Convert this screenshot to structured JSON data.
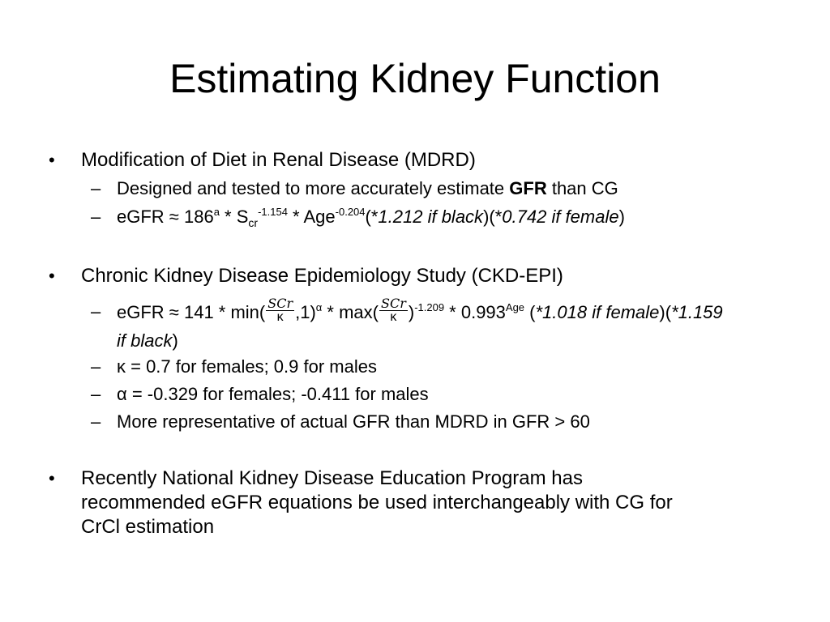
{
  "title": "Estimating Kidney Function",
  "bullets": {
    "mdrd": {
      "marker": "•",
      "heading": "Modification of Diet in Renal Disease (MDRD)",
      "sub1": {
        "dash": "–",
        "prefix": "Designed and tested to more accurately estimate ",
        "bold": "GFR",
        "suffix": " than CG"
      },
      "sub2": {
        "dash": "–",
        "p1": "eGFR ≈ 186",
        "sup_a": "a",
        "p2": " * S",
        "sub_cr": "cr",
        "sup_1": "-1.154",
        "p3": " * Age",
        "sup_2": "-0.204",
        "p4": "(*",
        "it1": "1.212 if black",
        "p5": ")(*",
        "it2": "0.742 if female",
        "p6": ")"
      }
    },
    "ckdepi": {
      "marker": "•",
      "heading": "Chronic Kidney Disease Epidemiology Study (CKD-EPI)",
      "sub1": {
        "dash": "–",
        "p1": "eGFR ≈ 141 * min(",
        "frac_num": "SCr",
        "frac_den": "κ",
        "p2": ",1)",
        "sup_alpha": "α",
        "p3": " * max(",
        "p4": ")",
        "sup_exp": "-1.209",
        "p5": " * 0.993",
        "sup_age": "Age",
        "p6": " (",
        "it1": "*1.018 if female",
        "p7": ")(",
        "it2": "*1.159 if black",
        "p8": ")"
      },
      "sub2": {
        "dash": "–",
        "text": "κ = 0.7 for females; 0.9 for males"
      },
      "sub3": {
        "dash": "–",
        "text": "α = -0.329 for females; -0.411 for males"
      },
      "sub4": {
        "dash": "–",
        "text": "More representative of actual GFR than MDRD in GFR > 60"
      }
    },
    "nkdep": {
      "marker": "•",
      "line1": "Recently National Kidney Disease Education Program has",
      "line2": "recommended eGFR equations be used interchangeably with CG for",
      "line3": "CrCl estimation"
    }
  }
}
